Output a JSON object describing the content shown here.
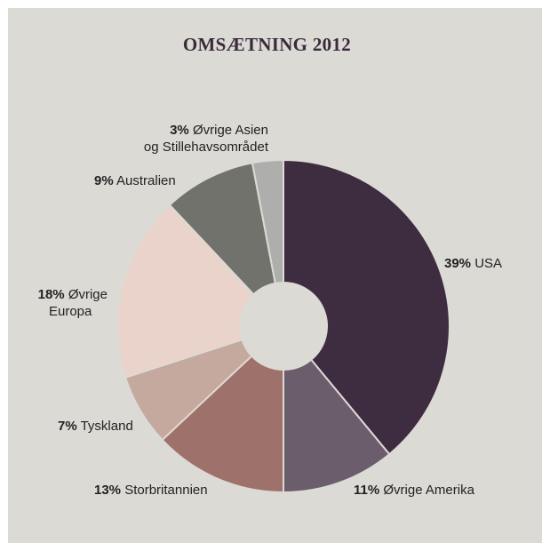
{
  "chart_data": {
    "type": "pie",
    "title": "OMSÆTNING 2012",
    "donut": true,
    "slices": [
      {
        "label": "USA",
        "value": 39,
        "pct_text": "39%",
        "color": "#3e2d40"
      },
      {
        "label": "Øvrige Amerika",
        "value": 11,
        "pct_text": "11%",
        "color": "#6c5d6c"
      },
      {
        "label": "Storbritannien",
        "value": 13,
        "pct_text": "13%",
        "color": "#9e716a"
      },
      {
        "label": "Tyskland",
        "value": 7,
        "pct_text": "7%",
        "color": "#c5a89e"
      },
      {
        "label": "Øvrige Europa",
        "label_lines": [
          "Øvrige",
          "Europa"
        ],
        "value": 18,
        "pct_text": "18%",
        "color": "#ead3ca"
      },
      {
        "label": "Australien",
        "value": 9,
        "pct_text": "9%",
        "color": "#72726d"
      },
      {
        "label": "Øvrige Asien og Stillehavsområdet",
        "label_lines": [
          "Øvrige Asien",
          "og Stillehavsområdet"
        ],
        "value": 3,
        "pct_text": "3%",
        "color": "#aeaeac"
      }
    ]
  },
  "colors": {
    "panel_background": "#dcdad5",
    "title": "#3a2a3b",
    "slice_separator": "#dcdad5"
  }
}
